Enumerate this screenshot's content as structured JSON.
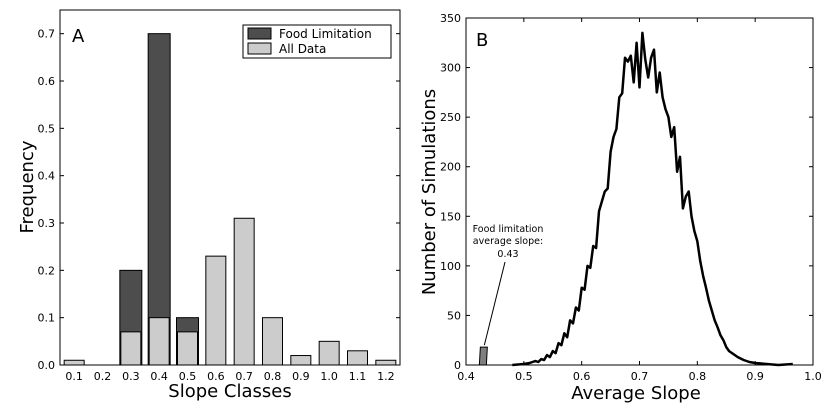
{
  "chart_data": [
    {
      "type": "bar",
      "panel_label": "A",
      "title": "",
      "xlabel": "Slope Classes",
      "ylabel": "Frequency",
      "ylim": [
        0,
        0.75
      ],
      "yticks": [
        "0.0",
        "0.1",
        "0.2",
        "0.3",
        "0.4",
        "0.5",
        "0.6",
        "0.7"
      ],
      "categories": [
        "0.1",
        "0.2",
        "0.3",
        "0.4",
        "0.5",
        "0.6",
        "0.7",
        "0.8",
        "0.9",
        "1.0",
        "1.1",
        "1.2"
      ],
      "series": [
        {
          "name": "Food Limitation",
          "color": "#4d4d4d",
          "values": [
            0,
            0,
            0.2,
            0.7,
            0.1,
            0,
            0,
            0,
            0,
            0,
            0,
            0
          ]
        },
        {
          "name": "All Data",
          "color": "#cccccc",
          "values": [
            0.01,
            0,
            0.07,
            0.1,
            0.07,
            0.23,
            0.31,
            0.1,
            0.02,
            0.05,
            0.03,
            0.01
          ]
        }
      ],
      "legend_position": "top-right"
    },
    {
      "type": "line",
      "panel_label": "B",
      "title": "",
      "xlabel": "Average Slope",
      "ylabel": "Number of Simulations",
      "xlim": [
        0.4,
        1.0
      ],
      "ylim": [
        0,
        350
      ],
      "xticks": [
        "0.4",
        "0.5",
        "0.6",
        "0.7",
        "0.8",
        "0.9",
        "1.0"
      ],
      "yticks": [
        "0",
        "50",
        "100",
        "150",
        "200",
        "250",
        "300",
        "350"
      ],
      "series": [
        {
          "name": "Simulations",
          "color": "#000000",
          "x": [
            0.48,
            0.5,
            0.51,
            0.52,
            0.525,
            0.53,
            0.535,
            0.54,
            0.545,
            0.55,
            0.555,
            0.56,
            0.565,
            0.57,
            0.575,
            0.58,
            0.585,
            0.59,
            0.595,
            0.6,
            0.605,
            0.61,
            0.615,
            0.62,
            0.625,
            0.63,
            0.635,
            0.64,
            0.645,
            0.65,
            0.655,
            0.66,
            0.665,
            0.67,
            0.675,
            0.68,
            0.685,
            0.69,
            0.695,
            0.7,
            0.705,
            0.71,
            0.715,
            0.72,
            0.725,
            0.73,
            0.735,
            0.74,
            0.745,
            0.75,
            0.755,
            0.76,
            0.765,
            0.77,
            0.775,
            0.78,
            0.785,
            0.79,
            0.795,
            0.8,
            0.805,
            0.81,
            0.815,
            0.82,
            0.825,
            0.83,
            0.835,
            0.84,
            0.845,
            0.85,
            0.855,
            0.86,
            0.87,
            0.88,
            0.89,
            0.9,
            0.92,
            0.94,
            0.965
          ],
          "y": [
            0,
            1,
            2,
            4,
            3,
            6,
            5,
            10,
            8,
            14,
            12,
            22,
            20,
            32,
            28,
            45,
            42,
            58,
            55,
            78,
            76,
            100,
            98,
            120,
            118,
            155,
            165,
            175,
            178,
            215,
            230,
            238,
            270,
            274,
            310,
            306,
            312,
            285,
            325,
            280,
            335,
            308,
            290,
            310,
            318,
            275,
            295,
            270,
            258,
            250,
            230,
            240,
            195,
            210,
            158,
            170,
            175,
            150,
            135,
            125,
            105,
            90,
            78,
            65,
            55,
            45,
            38,
            30,
            25,
            18,
            14,
            12,
            8,
            5,
            3,
            2,
            1,
            0,
            1
          ]
        }
      ],
      "annotation": {
        "lines": [
          "Food limitation",
          "average slope:",
          "0.43"
        ],
        "marker_x": 0.43,
        "marker_height": 18
      }
    }
  ]
}
